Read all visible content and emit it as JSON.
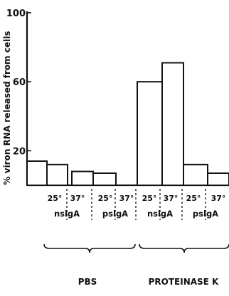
{
  "chart_data": {
    "type": "bar",
    "ylabel": "% viron RNA released from cells",
    "ylim": [
      0,
      100
    ],
    "yticks": [
      20,
      60,
      100
    ],
    "bars": [
      {
        "condition": "PBS",
        "antibody": "nsIgA",
        "temp": "25°",
        "value": 14
      },
      {
        "condition": "PBS",
        "antibody": "nsIgA",
        "temp": "37°",
        "value": 12
      },
      {
        "condition": "PBS",
        "antibody": "psIgA",
        "temp": "25°",
        "value": 8
      },
      {
        "condition": "PBS",
        "antibody": "psIgA",
        "temp": "37°",
        "value": 7
      },
      {
        "condition": "PROTEINASE K",
        "antibody": "nsIgA",
        "temp": "25°",
        "value": 60
      },
      {
        "condition": "PROTEINASE K",
        "antibody": "nsIgA",
        "temp": "37°",
        "value": 71
      },
      {
        "condition": "PROTEINASE K",
        "antibody": "psIgA",
        "temp": "25°",
        "value": 12
      },
      {
        "condition": "PROTEINASE K",
        "antibody": "psIgA",
        "temp": "37°",
        "value": 7
      }
    ],
    "antibody_groups": [
      "nslgA",
      "pslgA",
      "nslgA",
      "pslgA"
    ],
    "conditions": [
      "PBS",
      "PROTEINASE K"
    ]
  }
}
